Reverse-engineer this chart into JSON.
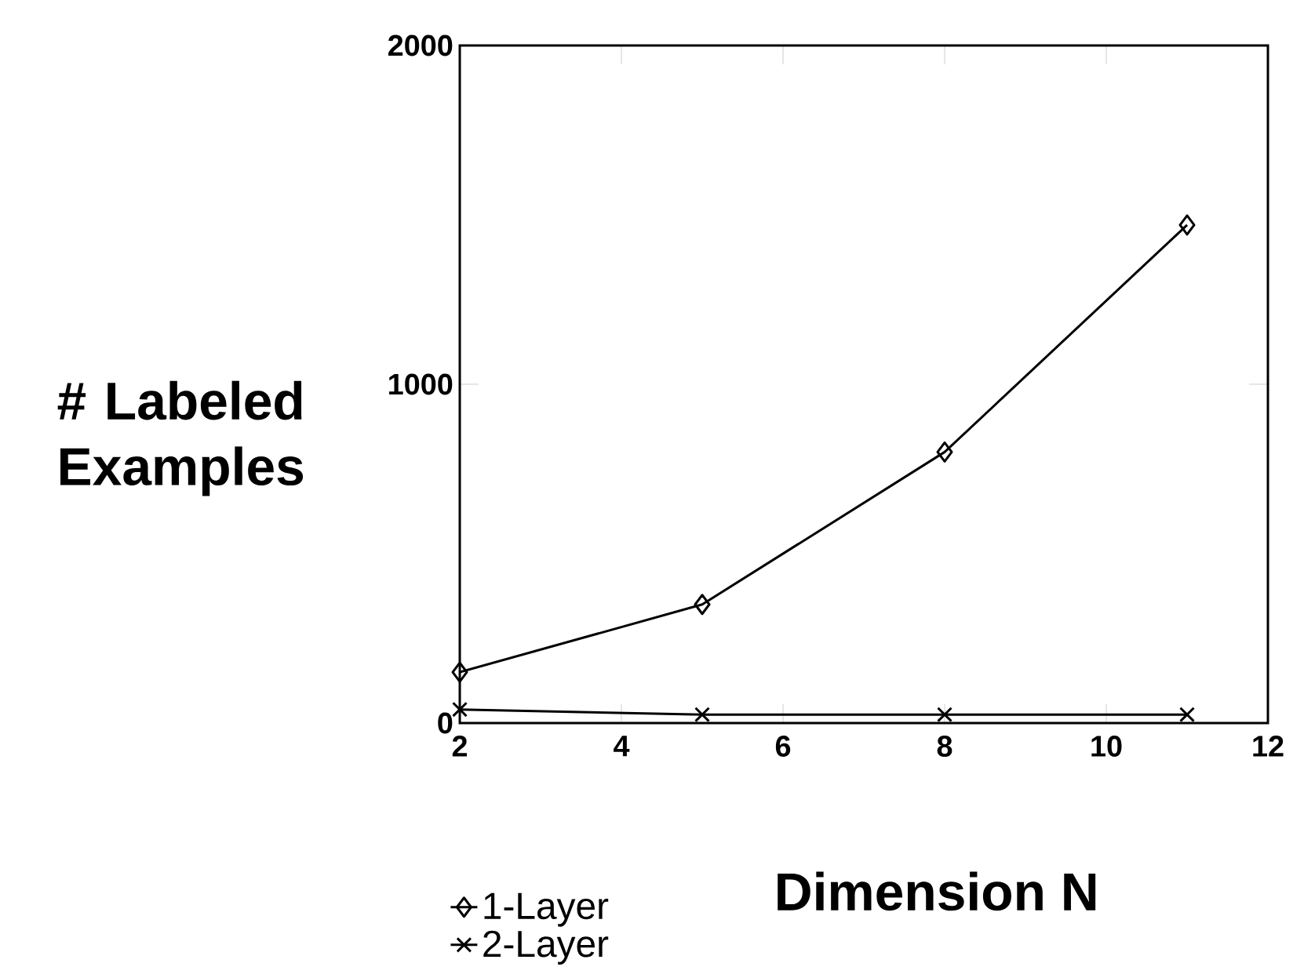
{
  "chart_data": {
    "type": "line",
    "xlabel": "Dimension N",
    "ylabel": "# Labeled Examples",
    "xlim": [
      2,
      12
    ],
    "xticks": [
      2,
      4,
      6,
      8,
      10,
      12
    ],
    "ylim": [
      0,
      2000
    ],
    "yticks": [
      0,
      1000,
      2000
    ],
    "legend": "bottom left",
    "grid": false,
    "series": [
      {
        "name": "1-Layer",
        "color": "#000000",
        "marker": "diamond",
        "x": [
          2,
          5,
          8,
          11
        ],
        "values": [
          150,
          350,
          800,
          1470
        ]
      },
      {
        "name": "2-Layer",
        "color": "#000000",
        "marker": "cross",
        "x": [
          2,
          5,
          8,
          11
        ],
        "values": [
          40,
          25,
          25,
          25
        ]
      }
    ]
  }
}
